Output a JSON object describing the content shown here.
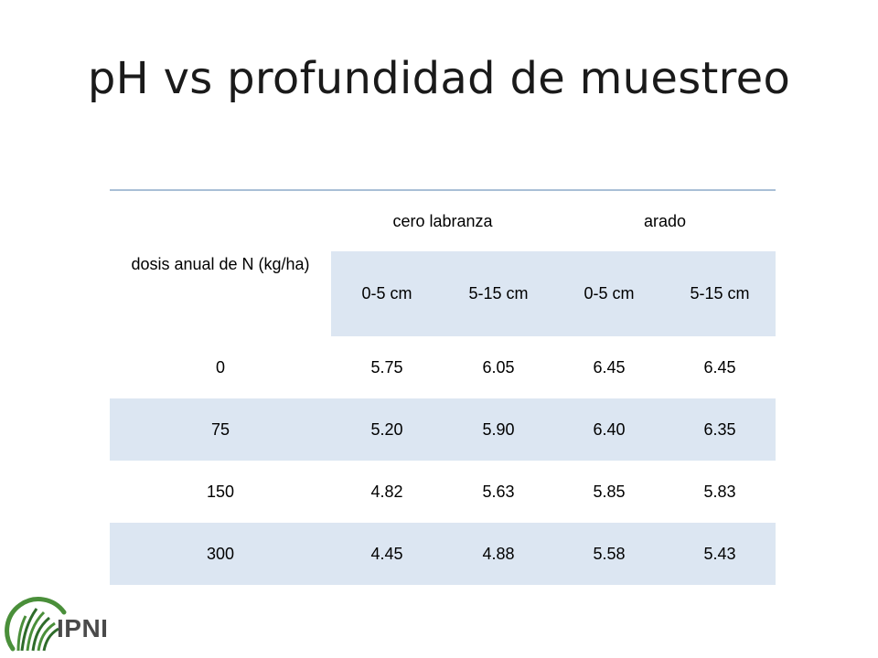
{
  "title": "pH vs profundidad de muestreo",
  "table": {
    "row_header": "dosis anual de N (kg/ha)",
    "groups": [
      "cero labranza",
      "arado"
    ],
    "depths": [
      "0-5 cm",
      "5-15 cm",
      "0-5 cm",
      "5-15 cm"
    ],
    "rows": [
      {
        "dosis": "0",
        "values": [
          "5.75",
          "6.05",
          "6.45",
          "6.45"
        ]
      },
      {
        "dosis": "75",
        "values": [
          "5.20",
          "5.90",
          "6.40",
          "6.35"
        ]
      },
      {
        "dosis": "150",
        "values": [
          "4.82",
          "5.63",
          "5.85",
          "5.83"
        ]
      },
      {
        "dosis": "300",
        "values": [
          "4.45",
          "4.88",
          "5.58",
          "5.43"
        ]
      }
    ]
  },
  "logo": {
    "text": "IPNI",
    "colors": {
      "green": "#4a8f3a",
      "dark_green": "#2e6b2a",
      "gray": "#4a4a4a"
    }
  }
}
